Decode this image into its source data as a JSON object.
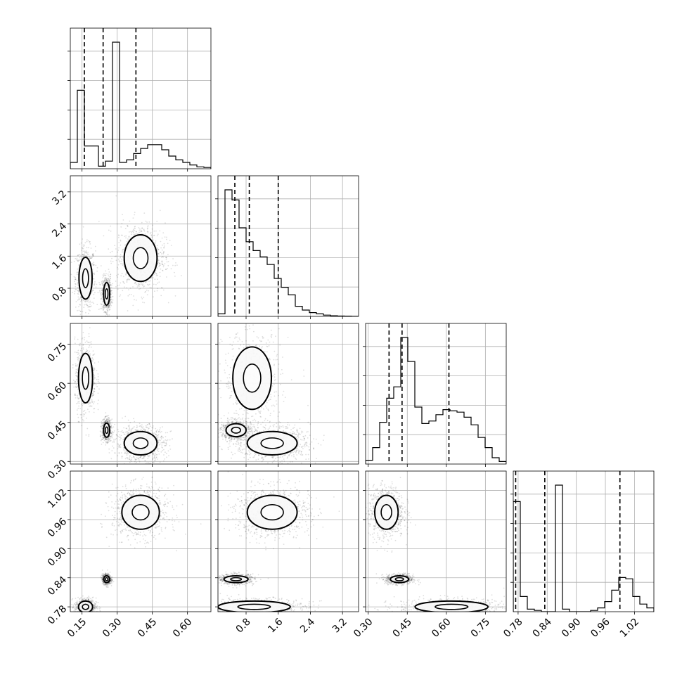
{
  "chart_data": {
    "type": "corner",
    "parameters": [
      {
        "name": "",
        "range": [
          0.1,
          0.7
        ],
        "ticks": [
          0.15,
          0.3,
          0.45,
          0.6
        ],
        "tick_labels": [
          "0.15",
          "0.30",
          "0.45",
          "0.60"
        ]
      },
      {
        "name": "",
        "range": [
          0.1,
          3.6
        ],
        "ticks": [
          0.8,
          1.6,
          2.4,
          3.2
        ],
        "tick_labels": [
          "0.8",
          "1.6",
          "2.4",
          "3.2"
        ]
      },
      {
        "name": "",
        "range": [
          0.29,
          0.83
        ],
        "ticks": [
          0.3,
          0.45,
          0.6,
          0.75
        ],
        "tick_labels": [
          "0.30",
          "0.45",
          "0.60",
          "0.75"
        ]
      },
      {
        "name": "",
        "range": [
          0.77,
          1.06
        ],
        "ticks": [
          0.78,
          0.84,
          0.9,
          0.96,
          1.02
        ],
        "tick_labels": [
          "0.78",
          "0.84",
          "0.90",
          "0.96",
          "1.02"
        ]
      }
    ],
    "quantiles": [
      [
        0.16,
        0.24,
        0.38
      ],
      [
        0.52,
        0.88,
        1.6
      ],
      [
        0.38,
        0.43,
        0.61
      ],
      [
        0.775,
        0.835,
        0.99
      ]
    ],
    "histograms": [
      {
        "edges_range": [
          0.1,
          0.7
        ],
        "counts": [
          0.05,
          0.62,
          0.18,
          0.18,
          0.02,
          0.06,
          1.0,
          0.05,
          0.07,
          0.12,
          0.16,
          0.19,
          0.19,
          0.15,
          0.1,
          0.07,
          0.05,
          0.03,
          0.015,
          0.01
        ]
      },
      {
        "edges_range": [
          0.1,
          3.6
        ],
        "counts": [
          0.02,
          1.0,
          0.92,
          0.7,
          0.59,
          0.52,
          0.47,
          0.41,
          0.3,
          0.23,
          0.17,
          0.08,
          0.05,
          0.03,
          0.02,
          0.01,
          0.005,
          0.003,
          0.002,
          0.001
        ]
      },
      {
        "edges_range": [
          0.29,
          0.83
        ],
        "counts": [
          0.03,
          0.13,
          0.33,
          0.52,
          0.61,
          1.0,
          0.81,
          0.45,
          0.32,
          0.34,
          0.39,
          0.43,
          0.42,
          0.41,
          0.37,
          0.31,
          0.21,
          0.13,
          0.05,
          0.02
        ]
      },
      {
        "edges_range": [
          0.77,
          1.06
        ],
        "counts": [
          0.87,
          0.12,
          0.02,
          0.01,
          0.0,
          0.0,
          1.0,
          0.02,
          0.0,
          0.0,
          0.0,
          0.01,
          0.03,
          0.08,
          0.17,
          0.27,
          0.26,
          0.12,
          0.06,
          0.03
        ]
      }
    ],
    "modes": [
      {
        "pair": [
          0,
          1
        ],
        "clusters": [
          {
            "center": [
              0.165,
              1.05
            ],
            "radius": [
              0.028,
              0.52
            ],
            "weight": 0.28
          },
          {
            "center": [
              0.255,
              0.66
            ],
            "radius": [
              0.013,
              0.28
            ],
            "weight": 0.32
          },
          {
            "center": [
              0.4,
              1.55
            ],
            "radius": [
              0.07,
              0.58
            ],
            "weight": 0.4
          }
        ]
      },
      {
        "pair": [
          0,
          2
        ],
        "clusters": [
          {
            "center": [
              0.165,
              0.62
            ],
            "radius": [
              0.03,
              0.095
            ],
            "weight": 0.28
          },
          {
            "center": [
              0.255,
              0.42
            ],
            "radius": [
              0.013,
              0.027
            ],
            "weight": 0.32
          },
          {
            "center": [
              0.4,
              0.37
            ],
            "radius": [
              0.07,
              0.045
            ],
            "weight": 0.4
          }
        ]
      },
      {
        "pair": [
          1,
          2
        ],
        "clusters": [
          {
            "center": [
              0.95,
              0.62
            ],
            "radius": [
              0.48,
              0.12
            ],
            "weight": 0.28
          },
          {
            "center": [
              0.55,
              0.42
            ],
            "radius": [
              0.25,
              0.025
            ],
            "weight": 0.32
          },
          {
            "center": [
              1.45,
              0.37
            ],
            "radius": [
              0.62,
              0.045
            ],
            "weight": 0.4
          }
        ]
      },
      {
        "pair": [
          0,
          3
        ],
        "clusters": [
          {
            "center": [
              0.165,
              0.78
            ],
            "radius": [
              0.03,
              0.012
            ],
            "weight": 0.28
          },
          {
            "center": [
              0.255,
              0.837
            ],
            "radius": [
              0.012,
              0.007
            ],
            "weight": 0.32
          },
          {
            "center": [
              0.4,
              0.975
            ],
            "radius": [
              0.08,
              0.035
            ],
            "weight": 0.4
          }
        ]
      },
      {
        "pair": [
          1,
          3
        ],
        "clusters": [
          {
            "center": [
              1.0,
              0.78
            ],
            "radius": [
              0.9,
              0.012
            ],
            "weight": 0.28
          },
          {
            "center": [
              0.55,
              0.837
            ],
            "radius": [
              0.3,
              0.007
            ],
            "weight": 0.32
          },
          {
            "center": [
              1.45,
              0.975
            ],
            "radius": [
              0.62,
              0.035
            ],
            "weight": 0.4
          }
        ]
      },
      {
        "pair": [
          2,
          3
        ],
        "clusters": [
          {
            "center": [
              0.62,
              0.78
            ],
            "radius": [
              0.14,
              0.012
            ],
            "weight": 0.28
          },
          {
            "center": [
              0.42,
              0.837
            ],
            "radius": [
              0.035,
              0.007
            ],
            "weight": 0.32
          },
          {
            "center": [
              0.37,
              0.975
            ],
            "radius": [
              0.045,
              0.035
            ],
            "weight": 0.4
          }
        ]
      }
    ],
    "grid": true
  }
}
